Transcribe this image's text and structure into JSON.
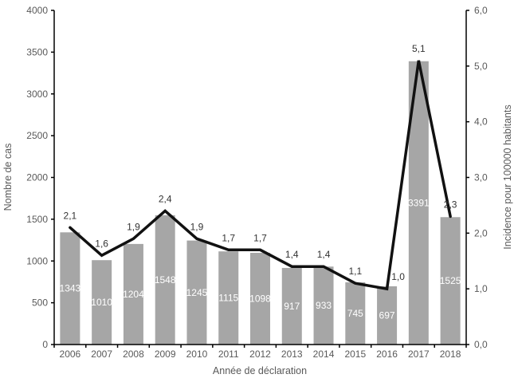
{
  "chart_data": {
    "type": "combo",
    "categories": [
      "2006",
      "2007",
      "2008",
      "2009",
      "2010",
      "2011",
      "2012",
      "2013",
      "2014",
      "2015",
      "2016",
      "2017",
      "2018"
    ],
    "series": [
      {
        "name": "Nombre de cas",
        "type": "bar",
        "axis": "left",
        "values": [
          1343,
          1010,
          1204,
          1548,
          1245,
          1115,
          1098,
          917,
          933,
          745,
          697,
          3391,
          1525
        ],
        "labels": [
          "1343",
          "1010",
          "1204",
          "1548",
          "1245",
          "1115",
          "1098",
          "917",
          "933",
          "745",
          "697",
          "3391",
          "1525"
        ],
        "color": "#a6a6a6",
        "label_color": "#ffffff"
      },
      {
        "name": "Incidence pour 100000 habitants",
        "type": "line",
        "axis": "right",
        "values": [
          2.1,
          1.6,
          1.9,
          2.4,
          1.9,
          1.7,
          1.7,
          1.4,
          1.4,
          1.1,
          1.0,
          5.1,
          2.3
        ],
        "labels": [
          "2,1",
          "1,6",
          "1,9",
          "2,4",
          "1,9",
          "1,7",
          "1,7",
          "1,4",
          "1,4",
          "1,1",
          "1,0",
          "5,1",
          "2,3"
        ],
        "color": "#111111",
        "label_color": "#333333"
      }
    ],
    "xlabel": "Année de déclaration",
    "ylabel_left": "Nombre de cas",
    "ylabel_right": "Incidence pour 100000 habitants",
    "y_left": {
      "min": 0,
      "max": 4000,
      "step": 500,
      "tick_labels": [
        "0",
        "500",
        "1000",
        "1500",
        "2000",
        "2500",
        "3000",
        "3500",
        "4000"
      ]
    },
    "y_right": {
      "min": 0,
      "max": 6,
      "step": 1,
      "tick_labels": [
        "0,0",
        "1,0",
        "2,0",
        "3,0",
        "4,0",
        "5,0",
        "6,0"
      ]
    },
    "grid": false,
    "legend": "none",
    "axis_color": "#000000",
    "tick_label_color": "#595959",
    "background_color": "#ffffff"
  }
}
